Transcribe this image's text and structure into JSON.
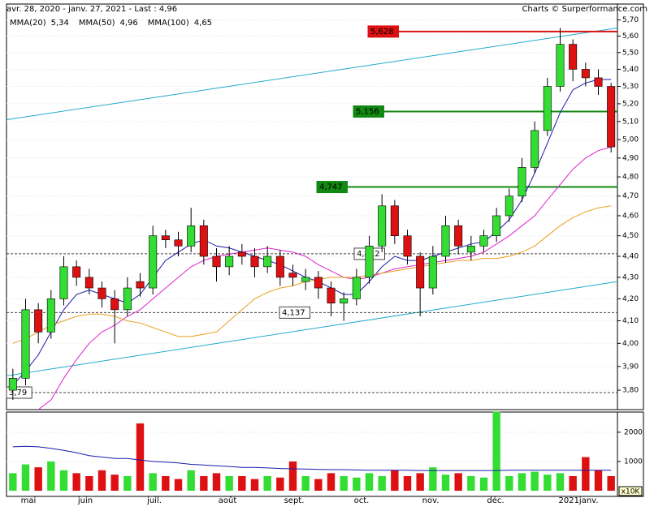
{
  "header": {
    "range": "avr. 28, 2020 - janv. 27, 2021 - Last : 4,96",
    "credit": "Charts © Surperformance.com"
  },
  "chart_data": [
    {
      "type": "candlestick",
      "log_scale": true,
      "ylim": [
        3.72,
        5.8
      ],
      "yticks": [
        {
          "value": 3.8,
          "label": "3,80"
        },
        {
          "value": 3.9,
          "label": "3,90"
        },
        {
          "value": 4.0,
          "label": "4,00"
        },
        {
          "value": 4.1,
          "label": "4,10"
        },
        {
          "value": 4.2,
          "label": "4,20"
        },
        {
          "value": 4.3,
          "label": "4,30"
        },
        {
          "value": 4.4,
          "label": "4,40"
        },
        {
          "value": 4.5,
          "label": "4,50"
        },
        {
          "value": 4.6,
          "label": "4,60"
        },
        {
          "value": 4.7,
          "label": "4,70"
        },
        {
          "value": 4.8,
          "label": "4,80"
        },
        {
          "value": 4.9,
          "label": "4,90"
        },
        {
          "value": 5.0,
          "label": "5,00"
        },
        {
          "value": 5.1,
          "label": "5,10"
        },
        {
          "value": 5.2,
          "label": "5,20"
        },
        {
          "value": 5.3,
          "label": "5,30"
        },
        {
          "value": 5.4,
          "label": "5,40"
        },
        {
          "value": 5.5,
          "label": "5,50"
        },
        {
          "value": 5.6,
          "label": "5,60"
        },
        {
          "value": 5.7,
          "label": "5,70"
        }
      ],
      "grid": true,
      "up_color": "#33dd33",
      "down_color": "#dd1111",
      "open": [
        3.8,
        3.85,
        4.15,
        4.05,
        4.2,
        4.35,
        4.3,
        4.25,
        4.2,
        4.15,
        4.28,
        4.25,
        4.5,
        4.48,
        4.45,
        4.55,
        4.4,
        4.35,
        4.42,
        4.4,
        4.35,
        4.4,
        4.32,
        4.28,
        4.3,
        4.25,
        4.18,
        4.2,
        4.3,
        4.45,
        4.65,
        4.5,
        4.4,
        4.25,
        4.4,
        4.55,
        4.42,
        4.45,
        4.5,
        4.6,
        4.7,
        4.85,
        5.05,
        5.3,
        5.55,
        5.4,
        5.35,
        5.3
      ],
      "high": [
        3.89,
        4.2,
        4.18,
        4.24,
        4.4,
        4.38,
        4.34,
        4.28,
        4.24,
        4.3,
        4.32,
        4.55,
        4.53,
        4.52,
        4.64,
        4.58,
        4.44,
        4.45,
        4.46,
        4.44,
        4.45,
        4.43,
        4.36,
        4.34,
        4.33,
        4.28,
        4.23,
        4.34,
        4.5,
        4.71,
        4.68,
        4.53,
        4.42,
        4.45,
        4.6,
        4.58,
        4.5,
        4.53,
        4.64,
        4.74,
        4.9,
        5.1,
        5.35,
        5.65,
        5.58,
        5.44,
        5.4,
        5.32
      ],
      "low": [
        3.76,
        3.82,
        4.0,
        4.02,
        4.17,
        4.26,
        4.22,
        4.16,
        4.0,
        4.12,
        4.21,
        4.22,
        4.44,
        4.4,
        4.42,
        4.36,
        4.28,
        4.31,
        4.36,
        4.3,
        4.32,
        4.26,
        4.26,
        4.24,
        4.2,
        4.12,
        4.1,
        4.17,
        4.27,
        4.42,
        4.46,
        4.36,
        4.12,
        4.22,
        4.37,
        4.41,
        4.38,
        4.42,
        4.47,
        4.57,
        4.67,
        4.82,
        5.02,
        5.27,
        5.33,
        5.3,
        5.25,
        4.93
      ],
      "close": [
        3.85,
        4.15,
        4.05,
        4.2,
        4.35,
        4.3,
        4.25,
        4.2,
        4.15,
        4.25,
        4.25,
        4.5,
        4.48,
        4.45,
        4.55,
        4.4,
        4.35,
        4.4,
        4.4,
        4.35,
        4.4,
        4.3,
        4.3,
        4.3,
        4.25,
        4.18,
        4.2,
        4.3,
        4.45,
        4.65,
        4.5,
        4.4,
        4.25,
        4.4,
        4.55,
        4.45,
        4.45,
        4.5,
        4.6,
        4.7,
        4.85,
        5.05,
        5.3,
        5.55,
        5.4,
        5.35,
        5.3,
        4.96
      ],
      "series": [
        {
          "name": "MMA(20)",
          "last": "5,34",
          "color": "#1a1aaa",
          "values": [
            3.82,
            3.88,
            3.95,
            4.05,
            4.15,
            4.22,
            4.24,
            4.22,
            4.2,
            4.18,
            4.22,
            4.3,
            4.38,
            4.42,
            4.46,
            4.48,
            4.45,
            4.44,
            4.42,
            4.4,
            4.38,
            4.36,
            4.33,
            4.3,
            4.28,
            4.25,
            4.22,
            4.22,
            4.28,
            4.35,
            4.4,
            4.38,
            4.38,
            4.4,
            4.42,
            4.44,
            4.46,
            4.47,
            4.52,
            4.58,
            4.68,
            4.82,
            4.98,
            5.15,
            5.28,
            5.32,
            5.34,
            5.34
          ]
        },
        {
          "name": "MMA(50)",
          "last": "4,96",
          "color": "#dd22cc",
          "values": [
            null,
            null,
            3.72,
            3.76,
            3.85,
            3.93,
            4.0,
            4.05,
            4.08,
            4.12,
            4.15,
            4.2,
            4.25,
            4.3,
            4.35,
            4.38,
            4.4,
            4.41,
            4.42,
            4.43,
            4.44,
            4.43,
            4.42,
            4.4,
            4.36,
            4.33,
            4.3,
            4.29,
            4.3,
            4.32,
            4.34,
            4.35,
            4.36,
            4.37,
            4.38,
            4.39,
            4.4,
            4.42,
            4.46,
            4.5,
            4.55,
            4.6,
            4.68,
            4.76,
            4.84,
            4.9,
            4.94,
            4.96
          ]
        },
        {
          "name": "MMA(100)",
          "last": "4,65",
          "color": "#e8a020",
          "values": [
            4.0,
            4.02,
            4.05,
            4.08,
            4.1,
            4.12,
            4.13,
            4.13,
            4.12,
            4.1,
            4.09,
            4.07,
            4.05,
            4.03,
            4.03,
            4.04,
            4.05,
            4.1,
            4.15,
            4.2,
            4.23,
            4.25,
            4.26,
            4.28,
            4.29,
            4.3,
            4.3,
            4.3,
            4.31,
            4.32,
            4.33,
            4.34,
            4.35,
            4.36,
            4.37,
            4.38,
            4.38,
            4.39,
            4.39,
            4.4,
            4.42,
            4.45,
            4.5,
            4.55,
            4.59,
            4.62,
            4.64,
            4.65
          ]
        }
      ],
      "trendlines": [
        {
          "color": "#22aacc",
          "values": [
            5.11,
            5.65
          ]
        },
        {
          "color": "#22aacc",
          "values": [
            3.86,
            4.28
          ]
        }
      ],
      "levels": [
        {
          "value": 5.628,
          "label": "5,628",
          "color": "#dd1111",
          "style": "solid"
        },
        {
          "value": 5.156,
          "label": "5,156",
          "color": "#118811",
          "style": "solid"
        },
        {
          "value": 4.747,
          "label": "4,747",
          "color": "#118811",
          "style": "solid"
        },
        {
          "value": 4.412,
          "label": "4,412",
          "color": "#444444",
          "style": "dashed"
        },
        {
          "value": 4.137,
          "label": "4,137",
          "color": "#444444",
          "style": "dashed"
        },
        {
          "value": 3.79,
          "label": "3,79",
          "color": "#444444",
          "style": "dashed"
        }
      ],
      "xlabels": [
        "mai",
        "juin",
        "juil.",
        "août",
        "sept.",
        "oct.",
        "nov.",
        "déc.",
        "2021janv."
      ]
    },
    {
      "type": "volume",
      "unit": "x10K",
      "ylim": [
        0,
        2690
      ],
      "yticks": [
        1000,
        2000
      ],
      "values": [
        600,
        900,
        800,
        1000,
        700,
        600,
        500,
        700,
        550,
        500,
        2300,
        600,
        500,
        400,
        700,
        500,
        600,
        500,
        500,
        400,
        500,
        450,
        1000,
        500,
        400,
        600,
        500,
        450,
        600,
        500,
        700,
        500,
        600,
        800,
        550,
        600,
        500,
        450,
        2700,
        500,
        600,
        650,
        550,
        600,
        500,
        1150,
        700,
        500
      ],
      "average": {
        "color": "#1a1aaa",
        "values": [
          1500,
          1520,
          1500,
          1450,
          1380,
          1300,
          1200,
          1150,
          1100,
          1100,
          1050,
          1000,
          980,
          950,
          900,
          880,
          850,
          830,
          800,
          800,
          780,
          760,
          750,
          740,
          730,
          720,
          720,
          710,
          700,
          700,
          700,
          700,
          690,
          690,
          690,
          690,
          690,
          690,
          690,
          700,
          700,
          700,
          700,
          700,
          700,
          700,
          700,
          700
        ]
      }
    }
  ]
}
